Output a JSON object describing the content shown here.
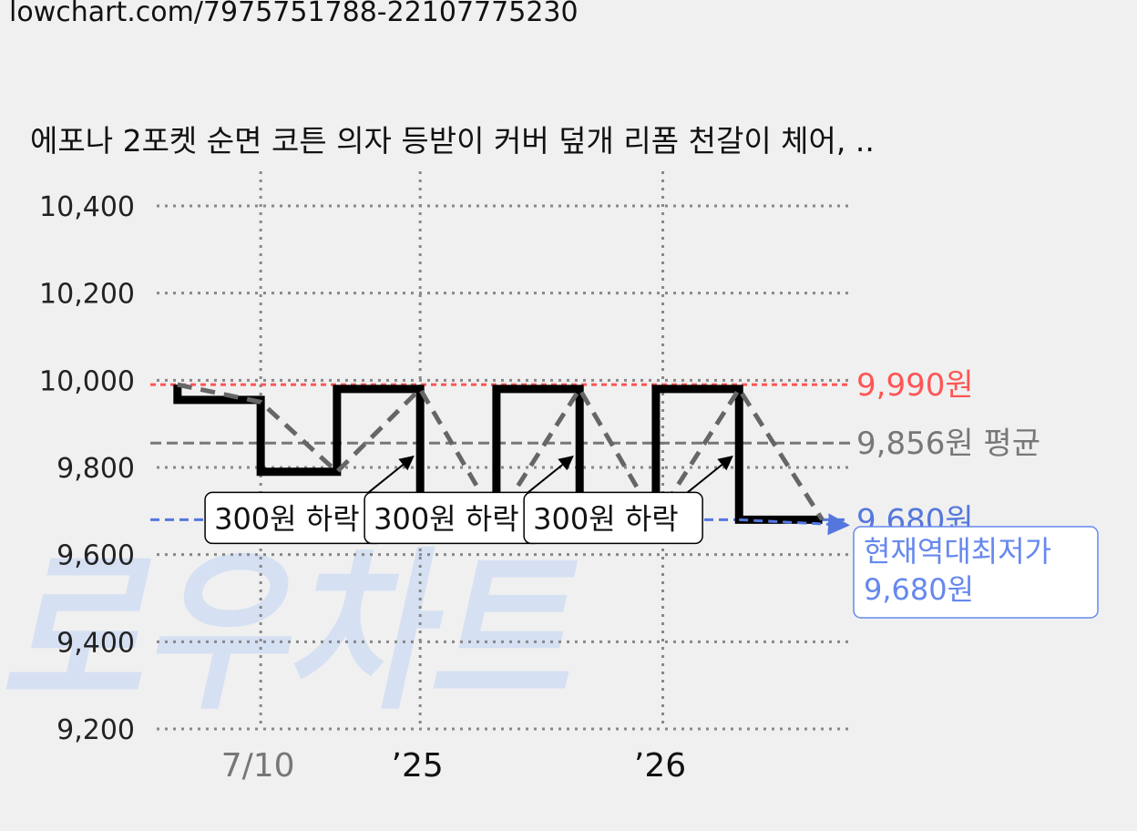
{
  "url": "lowchart.com/7975751788-22107775230",
  "title": "에포나 2포켓 순면 코튼 의자 등받이 커버 덮개 리폼 천갈이 체어, ..",
  "watermark": "로우차트",
  "colors": {
    "background": "#f0f0f0",
    "price_line": "#000000",
    "avg_line": "#666666",
    "max_ref": "#ff5555",
    "avg_ref": "#777777",
    "min_ref": "#5577dd",
    "min_label": "#6688ee",
    "watermark": "#d6e0f3"
  },
  "chart_data": {
    "type": "line",
    "title": "에포나 2포켓 순면 코튼 의자 등받이 커버 덮개 리폼 천갈이 체어, ..",
    "ylim": [
      9200,
      10400
    ],
    "y_ticks": [
      10400,
      10200,
      10000,
      9800,
      9600,
      9400,
      9200
    ],
    "y_tick_labels": [
      "10,400",
      "10,200",
      "10,000",
      "9,800",
      "9,600",
      "9,400",
      "9,200"
    ],
    "xlim": [
      0,
      100
    ],
    "x_ticks": [
      {
        "x": 15,
        "label": "7/10",
        "color": "#777777"
      },
      {
        "x": 38,
        "label": "’25",
        "color": "#111111"
      },
      {
        "x": 73,
        "label": "’26",
        "color": "#111111"
      }
    ],
    "grid": true,
    "series": [
      {
        "role": "price",
        "style": "step",
        "color": "#000000",
        "points": [
          [
            3,
            9990
          ],
          [
            3,
            9955
          ],
          [
            15,
            9955
          ],
          [
            15,
            9790
          ],
          [
            26,
            9790
          ],
          [
            26,
            9980
          ],
          [
            38,
            9980
          ],
          [
            38,
            9680
          ],
          [
            38,
            9680
          ],
          [
            49,
            9680
          ],
          [
            49,
            9980
          ],
          [
            61,
            9980
          ],
          [
            61,
            9680
          ],
          [
            72,
            9680
          ],
          [
            72,
            9980
          ],
          [
            84,
            9980
          ],
          [
            84,
            9680
          ],
          [
            96,
            9680
          ]
        ]
      },
      {
        "role": "trend",
        "style": "dashed",
        "color": "#666666",
        "points": [
          [
            3,
            9990
          ],
          [
            15,
            9950
          ],
          [
            26,
            9790
          ],
          [
            38,
            9980
          ],
          [
            49,
            9680
          ],
          [
            61,
            9980
          ],
          [
            72,
            9680
          ],
          [
            84,
            9980
          ],
          [
            96,
            9680
          ]
        ]
      }
    ],
    "reference_lines": [
      {
        "value": 9990,
        "label": "9,990원",
        "color": "#ff5555"
      },
      {
        "value": 9856,
        "label": "9,856원 평균",
        "color": "#777777"
      },
      {
        "value": 9680,
        "label": "9,680원",
        "color": "#5577dd"
      }
    ],
    "annotations": [
      {
        "text": "300원 하락",
        "x_from": 28,
        "y_from": 9710,
        "x_to": 37,
        "y_to": 9825
      },
      {
        "text": "300원 하락",
        "x_from": 51,
        "y_from": 9710,
        "x_to": 60,
        "y_to": 9825
      },
      {
        "text": "300원 하락",
        "x_from": 74,
        "y_from": 9710,
        "x_to": 83,
        "y_to": 9825
      }
    ],
    "low_callout": {
      "lines": [
        "현재역대최저가",
        "9,680원"
      ],
      "x": 96,
      "y": 9680
    }
  }
}
